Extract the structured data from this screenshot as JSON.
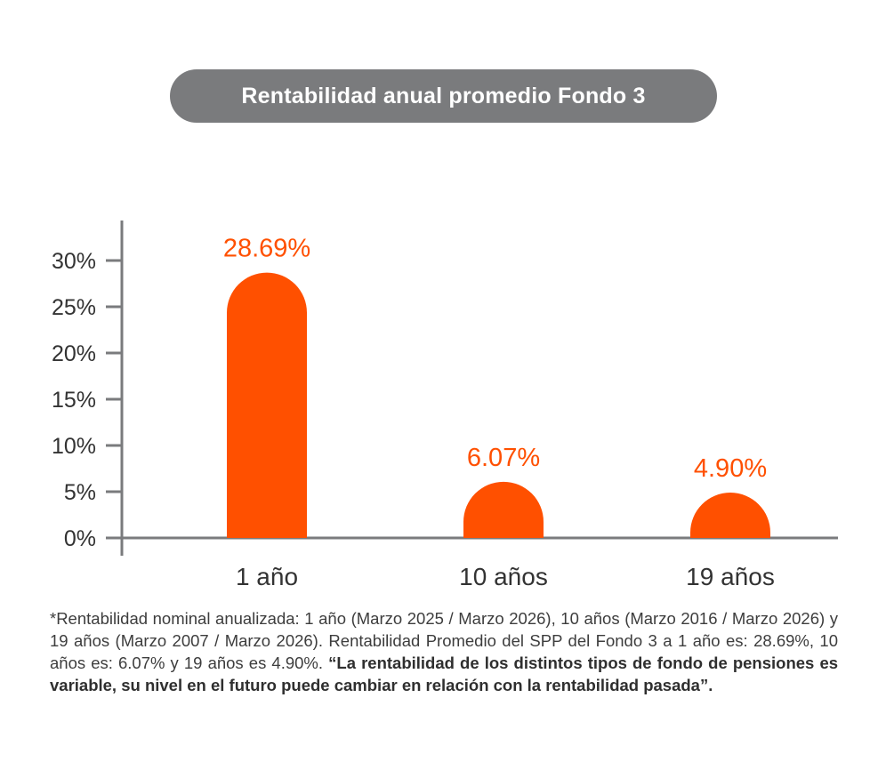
{
  "chart_data": {
    "type": "bar",
    "title": "Rentabilidad anual promedio Fondo 3",
    "categories": [
      "1 año",
      "10 años",
      "19 años"
    ],
    "values": [
      28.69,
      6.07,
      4.9
    ],
    "value_labels": [
      "28.69%",
      "6.07%",
      "4.90%"
    ],
    "yticks": [
      0,
      5,
      10,
      15,
      20,
      25,
      30
    ],
    "ytick_labels": [
      "0%",
      "5%",
      "10%",
      "15%",
      "20%",
      "25%",
      "30%"
    ],
    "ylim": [
      0,
      30
    ],
    "xlabel": "",
    "ylabel": "",
    "grid": false,
    "legend": "none",
    "colors": {
      "bar": "#ff5000",
      "value_label": "#ff5000",
      "axis": "#7a7b7d",
      "title_bg": "#7a7b7d"
    }
  },
  "footnote": {
    "text": "*Rentabilidad nominal anualizada: 1 año (Marzo 2025 / Marzo 2026), 10 años (Marzo 2016 / Marzo 2026) y 19 años (Marzo 2007 / Marzo 2026). Rentabilidad Promedio del SPP del Fondo 3 a 1 año es: 28.69%, 10 años es: 6.07% y 19 años es 4.90%.",
    "disclaimer": "“La rentabilidad de los distintos tipos de fondo de pensiones es variable, su nivel en el futuro puede cambiar en relación con la rentabilidad pasada”."
  }
}
